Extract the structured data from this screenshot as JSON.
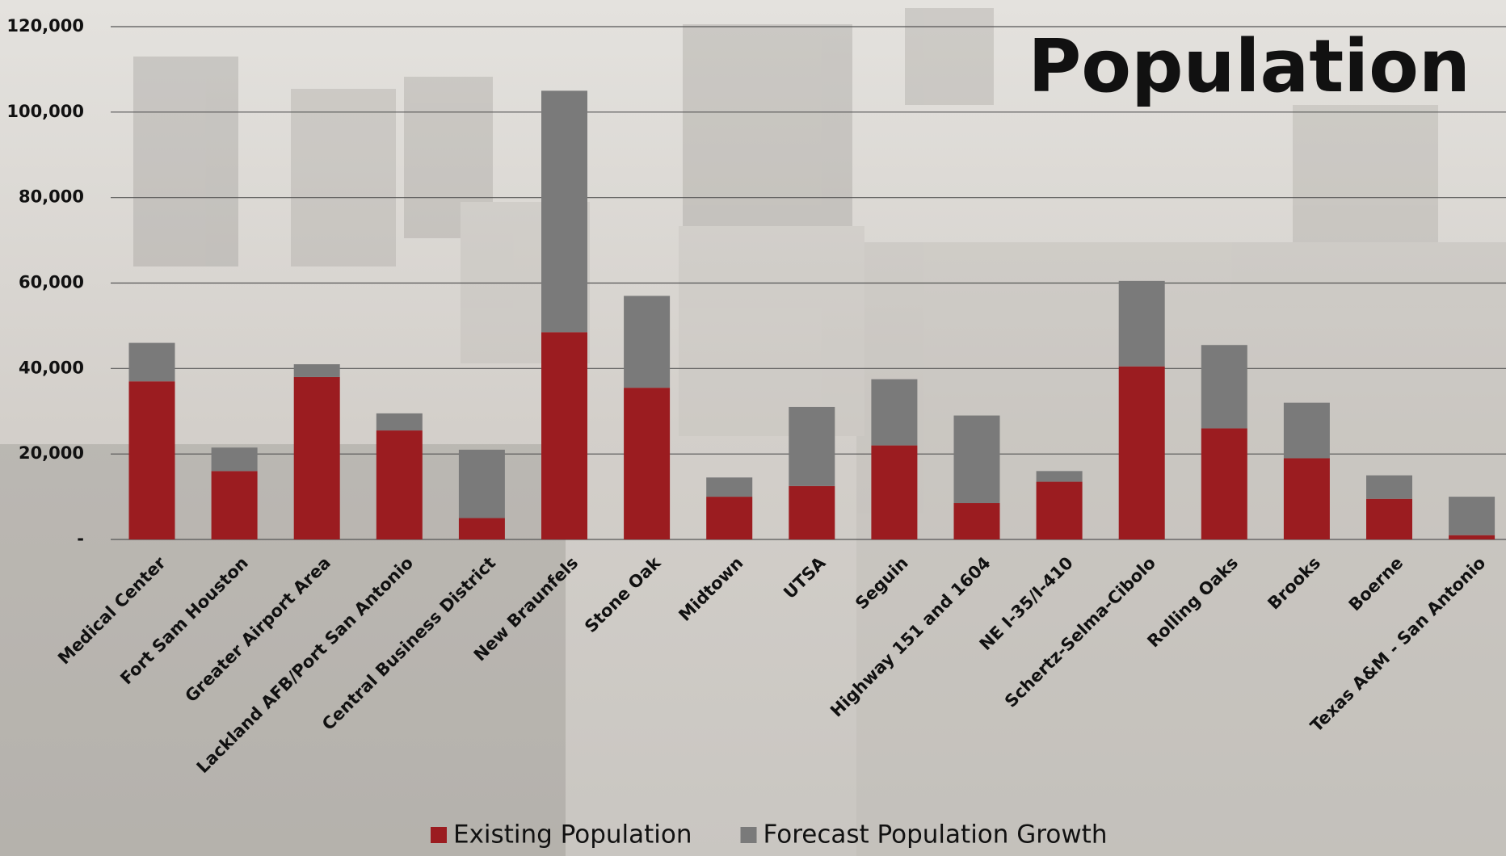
{
  "chart_data": {
    "type": "stacked-bar",
    "title": "Population",
    "categories": [
      "Medical Center",
      "Fort Sam Houston",
      "Greater Airport Area",
      "Lackland AFB/Port San Antonio",
      "Central Business District",
      "New Braunfels",
      "Stone Oak",
      "Midtown",
      "UTSA",
      "Seguin",
      "Highway 151 and 1604",
      "NE I-35/I-410",
      "Schertz-Selma-Cibolo",
      "Rolling Oaks",
      "Brooks",
      "Boerne",
      "Texas A&M - San Antonio"
    ],
    "series": [
      {
        "name": "Existing Population",
        "color": "#9b1c20",
        "values": [
          37000,
          16000,
          38000,
          25500,
          5000,
          48500,
          35500,
          10000,
          12500,
          22000,
          8500,
          13500,
          40500,
          26000,
          19000,
          9500,
          1000
        ]
      },
      {
        "name": "Forecast Population Growth",
        "color": "#7a7a7a",
        "values": [
          9000,
          5500,
          3000,
          4000,
          16000,
          56500,
          21500,
          4500,
          18500,
          15500,
          20500,
          2500,
          20000,
          19500,
          13000,
          5500,
          9000
        ]
      }
    ],
    "ylim": [
      0,
      120000
    ],
    "yticks": [
      {
        "value": 0,
        "label": "-"
      },
      {
        "value": 20000,
        "label": "20,000"
      },
      {
        "value": 40000,
        "label": "40,000"
      },
      {
        "value": 60000,
        "label": "60,000"
      },
      {
        "value": 80000,
        "label": "80,000"
      },
      {
        "value": 100000,
        "label": "100,000"
      },
      {
        "value": 120000,
        "label": "120,000"
      }
    ],
    "grid": true,
    "legend": "bottom"
  }
}
